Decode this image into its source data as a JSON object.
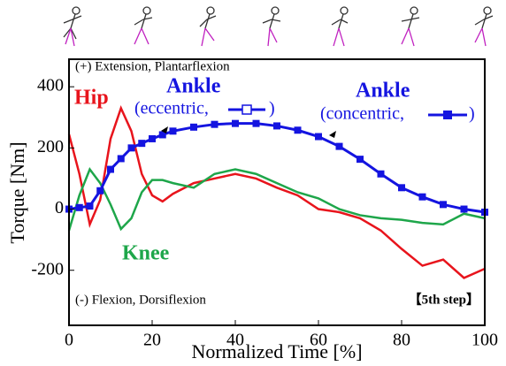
{
  "chart_data": {
    "type": "line",
    "x_label": "Normalized Time [%]",
    "y_label": "Torque [Nm]",
    "x": [
      0,
      2.5,
      5,
      7.5,
      10,
      12.5,
      15,
      17.5,
      20,
      22.5,
      25,
      30,
      35,
      40,
      45,
      50,
      55,
      60,
      65,
      70,
      75,
      80,
      85,
      90,
      95,
      100
    ],
    "series": [
      {
        "name": "Hip",
        "color": "#e8141c",
        "values": [
          245,
          115,
          -50,
          30,
          230,
          330,
          255,
          115,
          45,
          25,
          50,
          85,
          100,
          115,
          100,
          70,
          45,
          0,
          -10,
          -30,
          -70,
          -130,
          -185,
          -165,
          -225,
          -195
        ]
      },
      {
        "name": "Knee",
        "color": "#1ea64a",
        "values": [
          -70,
          45,
          130,
          85,
          15,
          -65,
          -30,
          55,
          95,
          95,
          85,
          70,
          115,
          130,
          115,
          85,
          55,
          35,
          0,
          -20,
          -30,
          -35,
          -45,
          -50,
          -15,
          -30
        ]
      },
      {
        "name": "Ankle",
        "color": "#1414e0",
        "values": [
          0,
          5,
          10,
          60,
          130,
          165,
          200,
          215,
          230,
          243,
          255,
          268,
          277,
          280,
          280,
          272,
          258,
          237,
          205,
          163,
          115,
          70,
          40,
          15,
          0,
          -10
        ]
      }
    ],
    "annotations": [
      "(+) Extension, Plantarflexion",
      "(-) Flexion, Dorsiflexion",
      "【5th step】",
      "(eccentric,",
      ")",
      "(concentric,",
      ")"
    ],
    "xlim": [
      0,
      100
    ],
    "xticks": [
      0,
      20,
      40,
      60,
      80,
      100
    ],
    "ylim": [
      -380,
      490
    ],
    "yticks": [
      -200,
      0,
      200,
      400
    ]
  }
}
